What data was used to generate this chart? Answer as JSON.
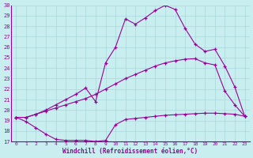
{
  "xlabel": "Windchill (Refroidissement éolien,°C)",
  "background_color": "#c8eef0",
  "grid_color": "#aad8da",
  "line_color": "#990099",
  "xlim": [
    -0.5,
    23.5
  ],
  "ylim": [
    17,
    30
  ],
  "xticks": [
    0,
    1,
    2,
    3,
    4,
    5,
    6,
    7,
    8,
    9,
    10,
    11,
    12,
    13,
    14,
    15,
    16,
    17,
    18,
    19,
    20,
    21,
    22,
    23
  ],
  "yticks": [
    17,
    18,
    19,
    20,
    21,
    22,
    23,
    24,
    25,
    26,
    27,
    28,
    29,
    30
  ],
  "line1_x": [
    0,
    1,
    2,
    3,
    4,
    5,
    6,
    7,
    8,
    9,
    10,
    11,
    12,
    13,
    14,
    15,
    16,
    17,
    18,
    19,
    20,
    21,
    22,
    23
  ],
  "line1_y": [
    19.3,
    18.9,
    18.3,
    17.7,
    17.2,
    17.1,
    17.1,
    17.1,
    17.0,
    17.1,
    18.6,
    19.1,
    19.2,
    19.3,
    19.4,
    19.5,
    19.55,
    19.6,
    19.65,
    19.7,
    19.7,
    19.65,
    19.6,
    19.4
  ],
  "line2_x": [
    0,
    1,
    2,
    3,
    4,
    5,
    6,
    7,
    8,
    9,
    10,
    11,
    12,
    13,
    14,
    15,
    16,
    17,
    18,
    19,
    20,
    21,
    22,
    23
  ],
  "line2_y": [
    19.3,
    19.3,
    19.6,
    19.9,
    20.2,
    20.5,
    20.8,
    21.1,
    21.5,
    22.0,
    22.5,
    23.0,
    23.4,
    23.8,
    24.2,
    24.5,
    24.7,
    24.85,
    24.9,
    24.5,
    24.3,
    21.8,
    20.5,
    19.4
  ],
  "line3_x": [
    0,
    1,
    2,
    3,
    4,
    5,
    6,
    7,
    8,
    9,
    10,
    11,
    12,
    13,
    14,
    15,
    16,
    17,
    18,
    19,
    20,
    21,
    22,
    23
  ],
  "line3_y": [
    19.3,
    19.3,
    19.6,
    20.0,
    20.5,
    21.0,
    21.5,
    22.1,
    20.8,
    24.5,
    26.0,
    28.7,
    28.2,
    28.8,
    29.5,
    30.0,
    29.6,
    27.8,
    26.3,
    25.6,
    25.8,
    24.2,
    22.2,
    19.4
  ]
}
